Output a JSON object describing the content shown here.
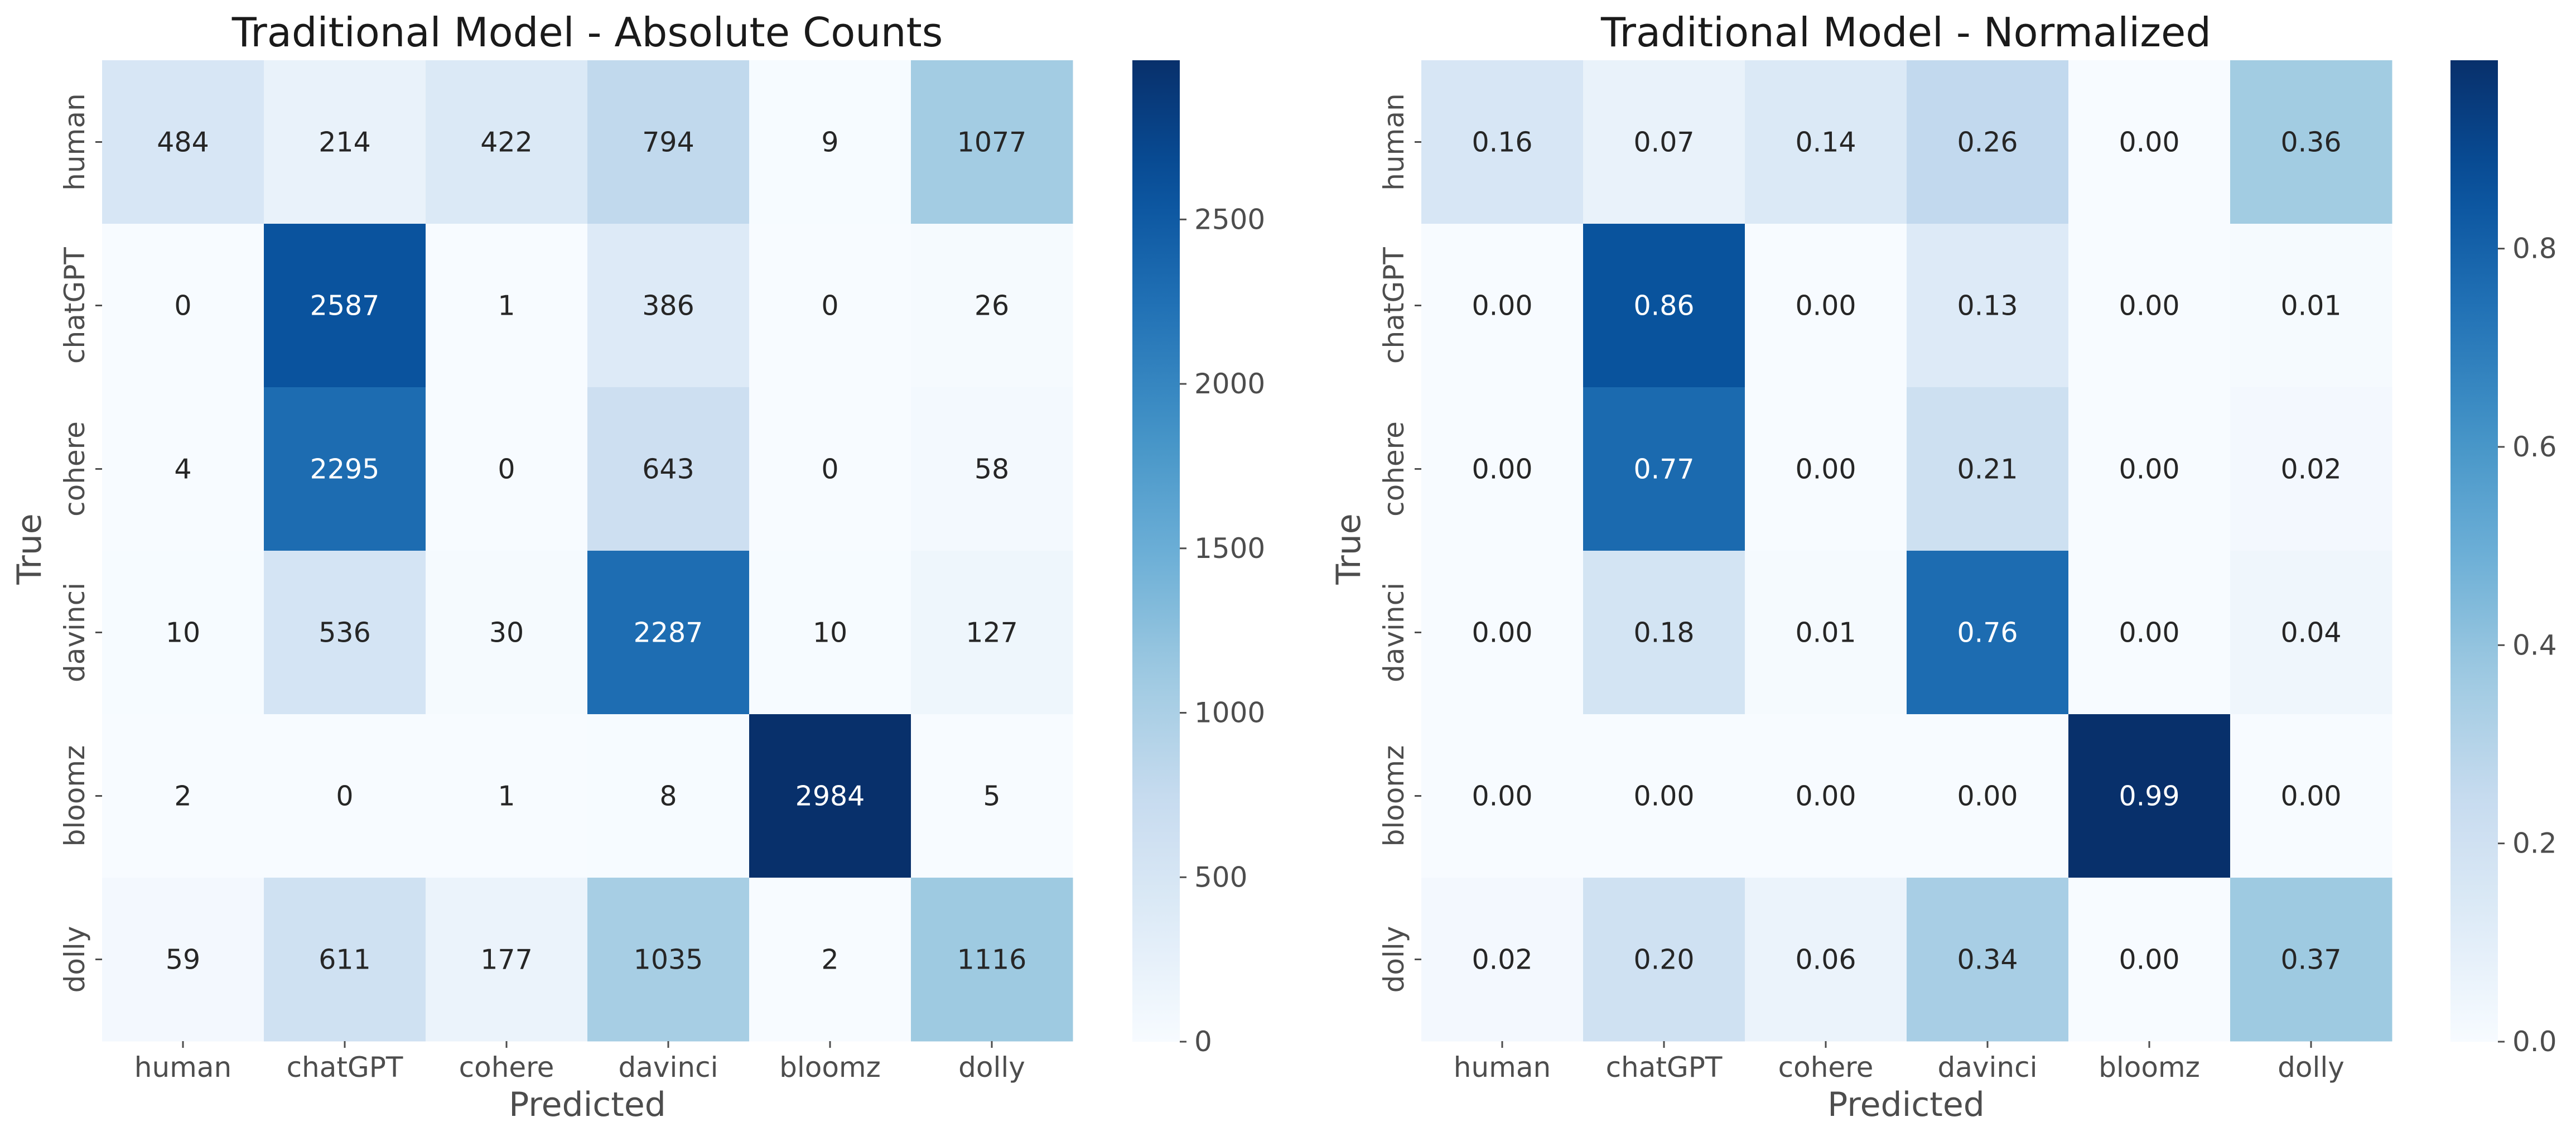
{
  "chart_data": [
    {
      "type": "heatmap",
      "title": "Traditional Model - Absolute Counts",
      "xlabel": "Predicted",
      "ylabel": "True",
      "x_categories": [
        "human",
        "chatGPT",
        "cohere",
        "davinci",
        "bloomz",
        "dolly"
      ],
      "y_categories": [
        "human",
        "chatGPT",
        "cohere",
        "davinci",
        "bloomz",
        "dolly"
      ],
      "values": [
        [
          484,
          214,
          422,
          794,
          9,
          1077
        ],
        [
          0,
          2587,
          1,
          386,
          0,
          26
        ],
        [
          4,
          2295,
          0,
          643,
          0,
          58
        ],
        [
          10,
          536,
          30,
          2287,
          10,
          127
        ],
        [
          2,
          0,
          1,
          8,
          2984,
          5
        ],
        [
          59,
          611,
          177,
          1035,
          2,
          1116
        ]
      ],
      "cell_labels": [
        [
          "484",
          "214",
          "422",
          "794",
          "9",
          "1077"
        ],
        [
          "0",
          "2587",
          "1",
          "386",
          "0",
          "26"
        ],
        [
          "4",
          "2295",
          "0",
          "643",
          "0",
          "58"
        ],
        [
          "10",
          "536",
          "30",
          "2287",
          "10",
          "127"
        ],
        [
          "2",
          "0",
          "1",
          "8",
          "2984",
          "5"
        ],
        [
          "59",
          "611",
          "177",
          "1035",
          "2",
          "1116"
        ]
      ],
      "colormap": "Blues",
      "vmin": 0,
      "vmax": 2984,
      "colorbar_ticks": [
        0,
        500,
        1000,
        1500,
        2000,
        2500
      ],
      "colorbar_tick_labels": [
        "0",
        "500",
        "1000",
        "1500",
        "2000",
        "2500"
      ]
    },
    {
      "type": "heatmap",
      "title": "Traditional Model - Normalized",
      "xlabel": "Predicted",
      "ylabel": "True",
      "x_categories": [
        "human",
        "chatGPT",
        "cohere",
        "davinci",
        "bloomz",
        "dolly"
      ],
      "y_categories": [
        "human",
        "chatGPT",
        "cohere",
        "davinci",
        "bloomz",
        "dolly"
      ],
      "values": [
        [
          0.16,
          0.07,
          0.14,
          0.26,
          0.0,
          0.36
        ],
        [
          0.0,
          0.86,
          0.0,
          0.13,
          0.0,
          0.01
        ],
        [
          0.0,
          0.77,
          0.0,
          0.21,
          0.0,
          0.02
        ],
        [
          0.0,
          0.18,
          0.01,
          0.76,
          0.0,
          0.04
        ],
        [
          0.0,
          0.0,
          0.0,
          0.0,
          0.99,
          0.0
        ],
        [
          0.02,
          0.2,
          0.06,
          0.34,
          0.0,
          0.37
        ]
      ],
      "cell_labels": [
        [
          "0.16",
          "0.07",
          "0.14",
          "0.26",
          "0.00",
          "0.36"
        ],
        [
          "0.00",
          "0.86",
          "0.00",
          "0.13",
          "0.00",
          "0.01"
        ],
        [
          "0.00",
          "0.77",
          "0.00",
          "0.21",
          "0.00",
          "0.02"
        ],
        [
          "0.00",
          "0.18",
          "0.01",
          "0.76",
          "0.00",
          "0.04"
        ],
        [
          "0.00",
          "0.00",
          "0.00",
          "0.00",
          "0.99",
          "0.00"
        ],
        [
          "0.02",
          "0.20",
          "0.06",
          "0.34",
          "0.00",
          "0.37"
        ]
      ],
      "colormap": "Blues",
      "vmin": 0,
      "vmax": 0.99,
      "colorbar_ticks": [
        0,
        0.2,
        0.4,
        0.6,
        0.8
      ],
      "colorbar_tick_labels": [
        "0.0",
        "0.2",
        "0.4",
        "0.6",
        "0.8"
      ]
    }
  ]
}
